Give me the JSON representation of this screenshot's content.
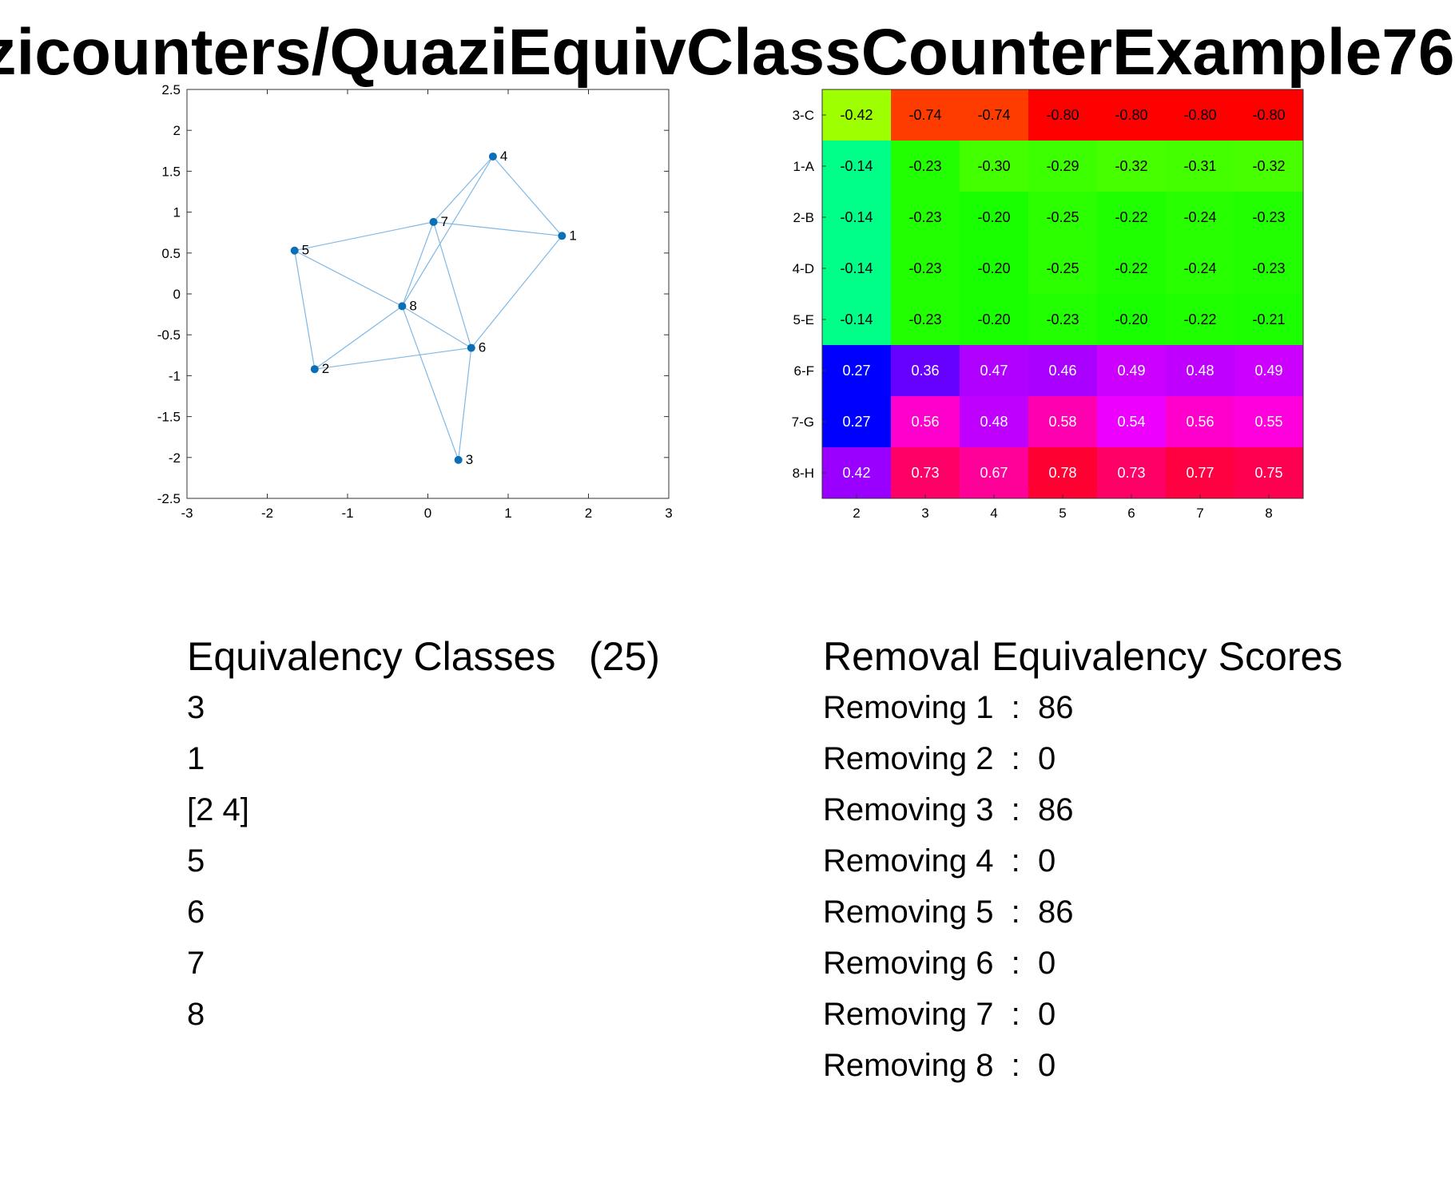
{
  "page": {
    "title": "zicounters/QuaziEquivClassCounterExample76"
  },
  "chart_data": [
    {
      "type": "scatter",
      "xlim": [
        -3,
        3
      ],
      "ylim": [
        -2.5,
        2.5
      ],
      "xticks": [
        "-3",
        "-2",
        "-1",
        "0",
        "1",
        "2",
        "3"
      ],
      "yticks": [
        "2.5",
        "2",
        "1.5",
        "1",
        "0.5",
        "0",
        "-0.5",
        "-1",
        "-1.5",
        "-2",
        "-2.5"
      ],
      "grid": false,
      "node_color": "#0b6fb8",
      "edge_color": "#7fb8e6",
      "nodes": [
        {
          "label": "1",
          "x": 1.67,
          "y": 0.71
        },
        {
          "label": "2",
          "x": -1.41,
          "y": -0.92
        },
        {
          "label": "3",
          "x": 0.38,
          "y": -2.03
        },
        {
          "label": "4",
          "x": 0.81,
          "y": 1.68
        },
        {
          "label": "5",
          "x": -1.66,
          "y": 0.53
        },
        {
          "label": "6",
          "x": 0.54,
          "y": -0.66
        },
        {
          "label": "7",
          "x": 0.07,
          "y": 0.88
        },
        {
          "label": "8",
          "x": -0.32,
          "y": -0.15
        }
      ],
      "edges": [
        [
          "1",
          "7"
        ],
        [
          "1",
          "4"
        ],
        [
          "1",
          "6"
        ],
        [
          "4",
          "7"
        ],
        [
          "4",
          "8"
        ],
        [
          "5",
          "7"
        ],
        [
          "5",
          "8"
        ],
        [
          "5",
          "2"
        ],
        [
          "2",
          "8"
        ],
        [
          "2",
          "6"
        ],
        [
          "7",
          "8"
        ],
        [
          "7",
          "6"
        ],
        [
          "8",
          "6"
        ],
        [
          "8",
          "3"
        ],
        [
          "6",
          "3"
        ]
      ]
    },
    {
      "type": "heatmap",
      "xcategories": [
        "2",
        "3",
        "4",
        "5",
        "6",
        "7",
        "8"
      ],
      "ycategories": [
        "3-C",
        "1-A",
        "2-B",
        "4-D",
        "5-E",
        "6-F",
        "7-G",
        "8-H"
      ],
      "values": [
        [
          "-0.42",
          "-0.74",
          "-0.74",
          "-0.80",
          "-0.80",
          "-0.80",
          "-0.80"
        ],
        [
          "-0.14",
          "-0.23",
          "-0.30",
          "-0.29",
          "-0.32",
          "-0.31",
          "-0.32"
        ],
        [
          "-0.14",
          "-0.23",
          "-0.20",
          "-0.25",
          "-0.22",
          "-0.24",
          "-0.23"
        ],
        [
          "-0.14",
          "-0.23",
          "-0.20",
          "-0.25",
          "-0.22",
          "-0.24",
          "-0.23"
        ],
        [
          "-0.14",
          "-0.23",
          "-0.20",
          "-0.23",
          "-0.20",
          "-0.22",
          "-0.21"
        ],
        [
          "0.27",
          "0.36",
          "0.47",
          "0.46",
          "0.49",
          "0.48",
          "0.49"
        ],
        [
          "0.27",
          "0.56",
          "0.48",
          "0.58",
          "0.54",
          "0.56",
          "0.55"
        ],
        [
          "0.42",
          "0.73",
          "0.67",
          "0.78",
          "0.73",
          "0.77",
          "0.75"
        ]
      ],
      "cell_colors": [
        [
          "#9dff00",
          "#ff3c00",
          "#ff3c00",
          "#ff0000",
          "#ff0000",
          "#ff0000",
          "#ff0000"
        ],
        [
          "#00ff88",
          "#22ff00",
          "#44ff00",
          "#3cff00",
          "#48ff00",
          "#44ff00",
          "#48ff00"
        ],
        [
          "#00ff88",
          "#22ff00",
          "#18ff00",
          "#2cff00",
          "#20ff00",
          "#28ff00",
          "#22ff00"
        ],
        [
          "#00ff88",
          "#22ff00",
          "#18ff00",
          "#2cff00",
          "#20ff00",
          "#28ff00",
          "#22ff00"
        ],
        [
          "#00ff88",
          "#22ff00",
          "#18ff00",
          "#22ff00",
          "#18ff00",
          "#20ff00",
          "#1cff00"
        ],
        [
          "#0000ff",
          "#6600ff",
          "#b000ff",
          "#aa00ff",
          "#cc00ff",
          "#c000ff",
          "#cc00ff"
        ],
        [
          "#0000ff",
          "#ff00cc",
          "#c000ff",
          "#ff00b0",
          "#ee00ff",
          "#ff00cc",
          "#ff00dd"
        ],
        [
          "#9900ff",
          "#ff0066",
          "#ff0099",
          "#ff0033",
          "#ff0066",
          "#ff0040",
          "#ff0050"
        ]
      ]
    }
  ],
  "classes": {
    "heading": "Equivalency Classes   (25)",
    "items": [
      "3",
      "1",
      "[2 4]",
      "5",
      "6",
      "7",
      "8"
    ]
  },
  "scores": {
    "heading": "Removal Equivalency Scores",
    "items": [
      "Removing 1  :  86",
      "Removing 2  :  0",
      "Removing 3  :  86",
      "Removing 4  :  0",
      "Removing 5  :  86",
      "Removing 6  :  0",
      "Removing 7  :  0",
      "Removing 8  :  0"
    ]
  }
}
